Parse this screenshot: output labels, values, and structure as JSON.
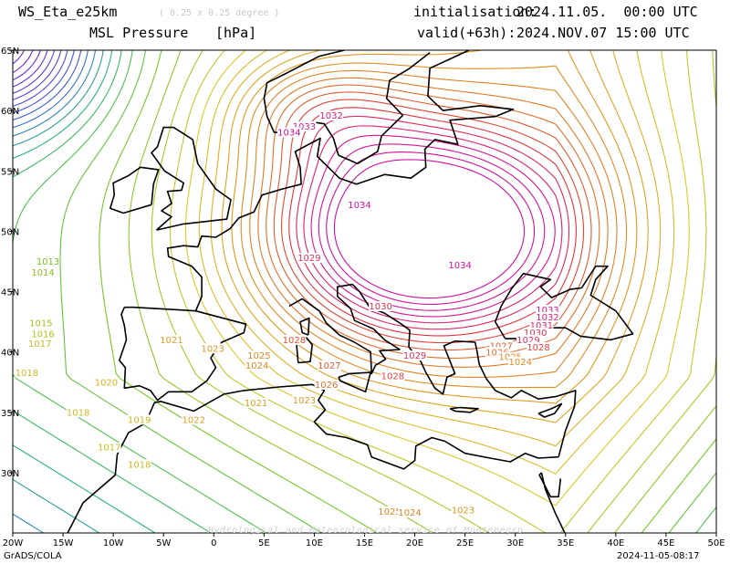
{
  "header": {
    "model": "WS_Eta_e25km",
    "resolution": "( 0.25 x 0.25 degree )",
    "field": "MSL Pressure",
    "unit": "[hPa]",
    "init_label": "initialisation:",
    "init_value": "2024.11.05.  00:00 UTC",
    "valid_label": "valid(+63h):",
    "valid_value": "2024.NOV.07 15:00 UTC"
  },
  "axes": {
    "lon_labels": [
      "20W",
      "15W",
      "10W",
      "5W",
      "0",
      "5E",
      "10E",
      "15E",
      "20E",
      "25E",
      "30E",
      "35E",
      "40E",
      "45E",
      "50E"
    ],
    "lat_labels": [
      "30N",
      "35N",
      "40N",
      "45N",
      "50N",
      "55N",
      "60N",
      "65N"
    ]
  },
  "footer": {
    "left": "GrADS/COLA",
    "right": "2024-11-05-08:17",
    "watermark": "Hydrological and Meteorological service of Montenegro"
  },
  "colors": {
    "low_violet": "#6a2bd9",
    "green": "#3fbf3f",
    "yellow": "#d8c030",
    "orange": "#e07a20",
    "red": "#e03040",
    "magenta": "#e010a0",
    "coast": "#000000"
  },
  "isobar_labels": [
    {
      "text": "1013",
      "lon": -16.5,
      "lat": 47.3,
      "color": "#7ac020"
    },
    {
      "text": "1014",
      "lon": -17.0,
      "lat": 46.4,
      "color": "#8ac020"
    },
    {
      "text": "1015",
      "lon": -17.2,
      "lat": 42.2,
      "color": "#a8c020"
    },
    {
      "text": "1016",
      "lon": -17.0,
      "lat": 41.3,
      "color": "#b8c020"
    },
    {
      "text": "1017",
      "lon": -17.3,
      "lat": 40.5,
      "color": "#c8c020"
    },
    {
      "text": "1018",
      "lon": -18.6,
      "lat": 38.1,
      "color": "#d0b820"
    },
    {
      "text": "1018",
      "lon": -13.5,
      "lat": 34.8,
      "color": "#d0b820"
    },
    {
      "text": "1018",
      "lon": -7.4,
      "lat": 30.5,
      "color": "#d0b820"
    },
    {
      "text": "1017",
      "lon": -10.4,
      "lat": 31.9,
      "color": "#c8c020"
    },
    {
      "text": "1019",
      "lon": -7.4,
      "lat": 34.2,
      "color": "#d0b820"
    },
    {
      "text": "1020",
      "lon": -10.7,
      "lat": 37.3,
      "color": "#d8b020"
    },
    {
      "text": "1021",
      "lon": -4.2,
      "lat": 40.8,
      "color": "#daa020"
    },
    {
      "text": "1022",
      "lon": -2.0,
      "lat": 34.2,
      "color": "#daa020"
    },
    {
      "text": "1023",
      "lon": -0.1,
      "lat": 40.1,
      "color": "#dc9820"
    },
    {
      "text": "1021",
      "lon": 4.2,
      "lat": 35.6,
      "color": "#daa020"
    },
    {
      "text": "1025",
      "lon": 4.5,
      "lat": 39.5,
      "color": "#e08820"
    },
    {
      "text": "1024",
      "lon": 4.3,
      "lat": 38.7,
      "color": "#e08820"
    },
    {
      "text": "1028",
      "lon": 8.0,
      "lat": 40.8,
      "color": "#e05030"
    },
    {
      "text": "1027",
      "lon": 11.5,
      "lat": 38.7,
      "color": "#e06030"
    },
    {
      "text": "1026",
      "lon": 11.2,
      "lat": 37.1,
      "color": "#e07030"
    },
    {
      "text": "1023",
      "lon": 9.0,
      "lat": 35.8,
      "color": "#dc9820"
    },
    {
      "text": "1025",
      "lon": 17.5,
      "lat": 26.6,
      "color": "#e08820"
    },
    {
      "text": "1024",
      "lon": 19.5,
      "lat": 26.5,
      "color": "#e08820"
    },
    {
      "text": "1023",
      "lon": 24.8,
      "lat": 26.7,
      "color": "#dc9820"
    },
    {
      "text": "1029",
      "lon": 9.5,
      "lat": 47.6,
      "color": "#e03060"
    },
    {
      "text": "1030",
      "lon": 16.6,
      "lat": 43.6,
      "color": "#e03050"
    },
    {
      "text": "1029",
      "lon": 20.0,
      "lat": 39.5,
      "color": "#e03060"
    },
    {
      "text": "1028",
      "lon": 17.8,
      "lat": 37.8,
      "color": "#e04040"
    },
    {
      "text": "1034",
      "lon": 14.5,
      "lat": 52.0,
      "color": "#d010a0"
    },
    {
      "text": "1034",
      "lon": 24.5,
      "lat": 47.0,
      "color": "#d010a0"
    },
    {
      "text": "1033",
      "lon": 9.0,
      "lat": 58.5,
      "color": "#d81890"
    },
    {
      "text": "1034",
      "lon": 7.5,
      "lat": 58.0,
      "color": "#d010a0"
    },
    {
      "text": "1032",
      "lon": 11.7,
      "lat": 59.4,
      "color": "#d82080"
    },
    {
      "text": "1033",
      "lon": 33.2,
      "lat": 43.3,
      "color": "#d81890"
    },
    {
      "text": "1032",
      "lon": 33.2,
      "lat": 42.7,
      "color": "#d82080"
    },
    {
      "text": "1031",
      "lon": 32.6,
      "lat": 42.0,
      "color": "#e02070"
    },
    {
      "text": "1030",
      "lon": 32.0,
      "lat": 41.4,
      "color": "#e03050"
    },
    {
      "text": "1029",
      "lon": 31.3,
      "lat": 40.8,
      "color": "#e03060"
    },
    {
      "text": "1028",
      "lon": 32.3,
      "lat": 40.2,
      "color": "#e04040"
    },
    {
      "text": "1027",
      "lon": 28.6,
      "lat": 40.3,
      "color": "#e06030"
    },
    {
      "text": "1026",
      "lon": 28.2,
      "lat": 39.8,
      "color": "#e07030"
    },
    {
      "text": "1025",
      "lon": 29.5,
      "lat": 39.4,
      "color": "#e08820"
    },
    {
      "text": "1024",
      "lon": 30.5,
      "lat": 39.0,
      "color": "#e08820"
    }
  ]
}
